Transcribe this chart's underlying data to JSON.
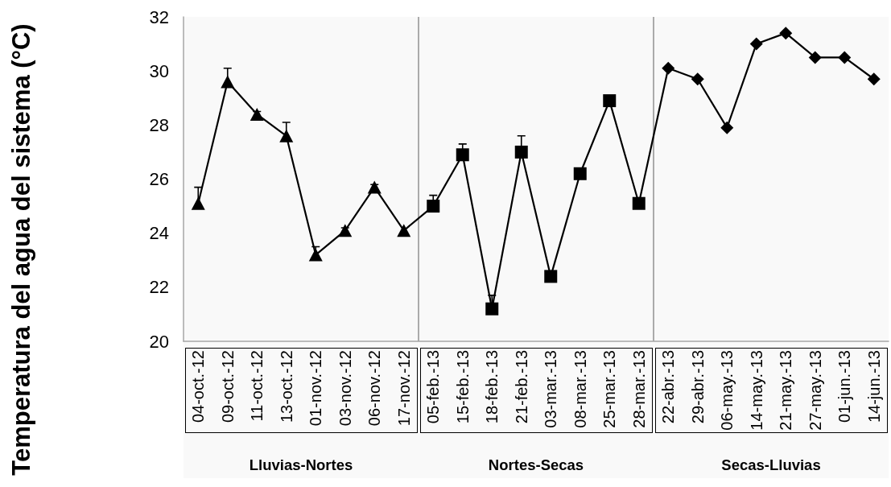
{
  "chart_data": {
    "type": "line",
    "ylabel": "Temperatura del agua del sistema (°C)",
    "categories": [
      "04-oct.-12",
      "09-oct.-12",
      "11-oct.-12",
      "13-oct.-12",
      "01-nov.-12",
      "03-nov.-12",
      "06-nov.-12",
      "17-nov.-12",
      "05-feb.-13",
      "15-feb.-13",
      "18-feb.-13",
      "21-feb.-13",
      "03-mar.-13",
      "08-mar.-13",
      "25-mar.-13",
      "28-mar.-13",
      "22-abr.-13",
      "29-abr.-13",
      "06-may.-13",
      "14-may.-13",
      "21-may.-13",
      "27-may.-13",
      "01-jun.-13",
      "14-jun.-13"
    ],
    "series": [
      {
        "color": "#000000",
        "marker": "none",
        "values": [
          25.1,
          29.6,
          28.4,
          27.6,
          23.2,
          24.1,
          25.7,
          24.1,
          25.0,
          26.9,
          21.2,
          27.0,
          22.4,
          26.2,
          28.9,
          25.1,
          30.1,
          29.7,
          27.9,
          31.0,
          31.4,
          30.5,
          30.5,
          29.7
        ]
      },
      {
        "type": "scatter",
        "color": "#000000",
        "marker": "triangle",
        "x": [
          "04-oct.-12",
          "09-oct.-12",
          "11-oct.-12",
          "13-oct.-12",
          "01-nov.-12",
          "03-nov.-12",
          "06-nov.-12",
          "17-nov.-12"
        ],
        "values": [
          25.1,
          29.6,
          28.4,
          27.6,
          23.2,
          24.1,
          25.7,
          24.1
        ],
        "errors": [
          [
            25.1,
            25.7
          ],
          [
            29.6,
            30.1
          ],
          [
            28.4,
            28.5
          ],
          [
            27.6,
            28.1
          ],
          [
            23.2,
            23.5
          ],
          [
            24.1,
            24.2
          ],
          [
            25.7,
            25.8
          ],
          null
        ]
      },
      {
        "type": "scatter",
        "color": "#000000",
        "marker": "square",
        "x": [
          "05-feb.-13",
          "15-feb.-13",
          "18-feb.-13",
          "21-feb.-13",
          "03-mar.-13",
          "08-mar.-13",
          "25-mar.-13",
          "28-mar.-13"
        ],
        "values": [
          25.0,
          26.9,
          21.2,
          27.0,
          22.4,
          26.2,
          28.9,
          25.1
        ],
        "errors": [
          [
            25.0,
            25.4
          ],
          [
            26.9,
            27.3
          ],
          [
            21.2,
            21.7
          ],
          [
            27.0,
            27.6
          ],
          null,
          null,
          null,
          null
        ]
      },
      {
        "type": "scatter",
        "color": "#000000",
        "marker": "diamond",
        "x": [
          "22-abr.-13",
          "29-abr.-13",
          "06-may.-13",
          "14-may.-13",
          "21-may.-13",
          "27-may.-13",
          "01-jun.-13",
          "14-jun.-13"
        ],
        "values": [
          30.1,
          29.7,
          27.9,
          31.0,
          31.4,
          30.5,
          30.5,
          29.7
        ]
      }
    ],
    "bands": [
      {
        "axis": "x",
        "from": "04-oct.-12",
        "to": "17-nov.-12",
        "label": "Lluvias-Nortes"
      },
      {
        "axis": "x",
        "from": "05-feb.-13",
        "to": "28-mar.-13",
        "label": "Nortes-Secas"
      },
      {
        "axis": "x",
        "from": "22-abr.-13",
        "to": "14-jun.-13",
        "label": "Secas-Lluvias"
      }
    ],
    "ylim": [
      20,
      32
    ],
    "yticks": [
      20,
      22,
      24,
      26,
      28,
      30,
      32
    ],
    "grid": false,
    "line_style": "solid"
  }
}
